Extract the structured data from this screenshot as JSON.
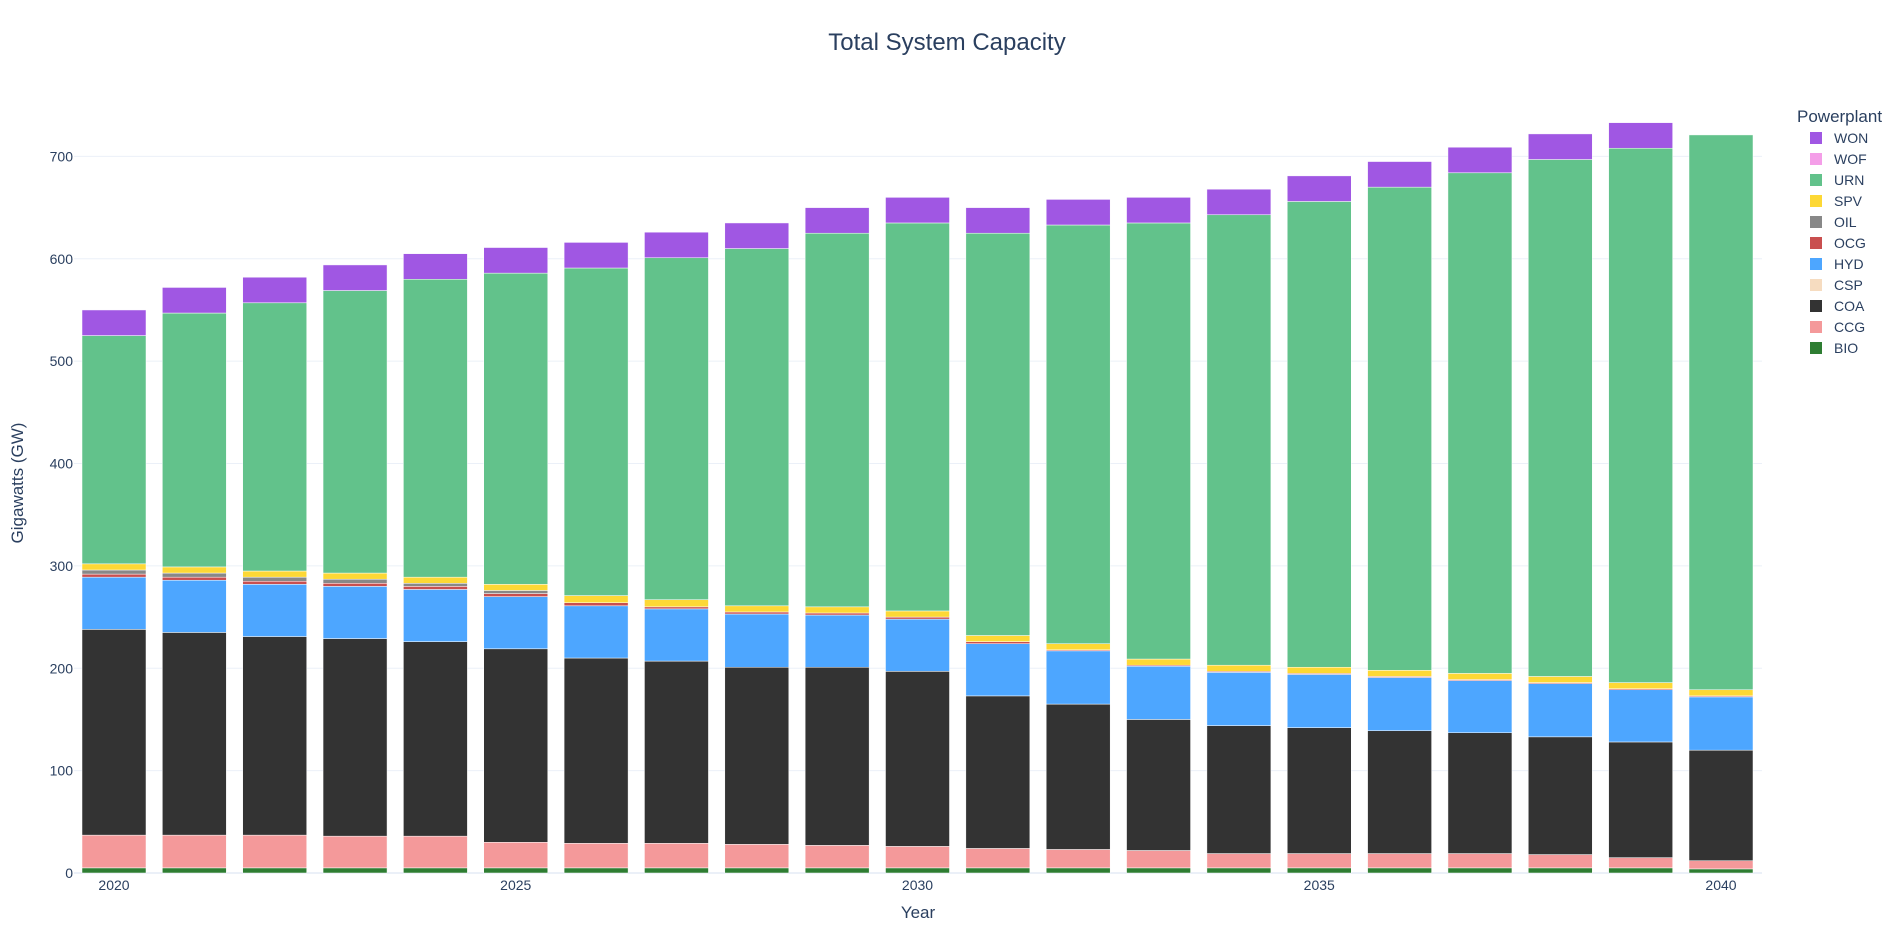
{
  "chart_data": {
    "type": "bar",
    "barmode": "stack",
    "title": "Total System Capacity",
    "xlabel": "Year",
    "ylabel": "Gigawatts (GW)",
    "ylim": [
      0,
      760
    ],
    "yticks": [
      0,
      100,
      200,
      300,
      400,
      500,
      600,
      700
    ],
    "xticks": [
      2020,
      2025,
      2030,
      2035,
      2040
    ],
    "legend_title": "Powerplant",
    "legend_position": "top-right",
    "categories": [
      2020,
      2021,
      2022,
      2023,
      2024,
      2025,
      2026,
      2027,
      2028,
      2029,
      2030,
      2031,
      2032,
      2033,
      2034,
      2035,
      2036,
      2037,
      2038,
      2039,
      2040
    ],
    "series": [
      {
        "name": "BIO",
        "color": "#2e7d32",
        "values": [
          5,
          5,
          5,
          5,
          5,
          5,
          5,
          5,
          5,
          5,
          5,
          5,
          5,
          5,
          5,
          5,
          5,
          5,
          5,
          5,
          4
        ]
      },
      {
        "name": "CCG",
        "color": "#f4999a",
        "values": [
          32,
          32,
          32,
          31,
          31,
          25,
          24,
          24,
          23,
          22,
          21,
          19,
          18,
          17,
          14,
          14,
          14,
          14,
          13,
          10,
          8
        ]
      },
      {
        "name": "COA",
        "color": "#333333",
        "values": [
          201,
          198,
          194,
          193,
          190,
          189,
          181,
          178,
          173,
          174,
          171,
          149,
          142,
          128,
          125,
          123,
          120,
          118,
          115,
          113,
          108
        ]
      },
      {
        "name": "CSP",
        "color": "#f6dcc0",
        "values": [
          0,
          0,
          0,
          0,
          0,
          0,
          0,
          0,
          0,
          0,
          0,
          0,
          0,
          0,
          0,
          0,
          0,
          0,
          0,
          0,
          0
        ]
      },
      {
        "name": "HYD",
        "color": "#4da6ff",
        "values": [
          51,
          51,
          51,
          51,
          51,
          51,
          51,
          51,
          52,
          51,
          51,
          51,
          52,
          52,
          52,
          52,
          52,
          51,
          52,
          51,
          52
        ]
      },
      {
        "name": "OCG",
        "color": "#c94f4f",
        "values": [
          3,
          3,
          3,
          3,
          3,
          3,
          3,
          2,
          2,
          2,
          2,
          2,
          1,
          1,
          1,
          1,
          1,
          1,
          1,
          1,
          1
        ]
      },
      {
        "name": "OIL",
        "color": "#888888",
        "values": [
          4,
          4,
          4,
          4,
          3,
          3,
          0,
          0,
          0,
          0,
          0,
          0,
          0,
          0,
          0,
          0,
          0,
          0,
          0,
          0,
          0
        ]
      },
      {
        "name": "SPV",
        "color": "#fdd835",
        "values": [
          6,
          6,
          6,
          6,
          6,
          6,
          7,
          7,
          6,
          6,
          6,
          6,
          6,
          6,
          6,
          6,
          6,
          6,
          6,
          6,
          6
        ]
      },
      {
        "name": "URN",
        "color": "#62c28b",
        "values": [
          223,
          248,
          262,
          276,
          291,
          304,
          320,
          334,
          349,
          365,
          379,
          393,
          409,
          426,
          440,
          455,
          472,
          489,
          505,
          522,
          542
        ]
      },
      {
        "name": "WOF",
        "color": "#f49ee8",
        "values": [
          0,
          0,
          0,
          0,
          0,
          0,
          0,
          0,
          0,
          0,
          0,
          0,
          0,
          0,
          0,
          0,
          0,
          0,
          0,
          0,
          0
        ]
      },
      {
        "name": "WON",
        "color": "#a057e3",
        "values": [
          25,
          25,
          25,
          25,
          25,
          25,
          25,
          25,
          25,
          25,
          25,
          25,
          25,
          25,
          25,
          25,
          25,
          25,
          25,
          25,
          0
        ]
      }
    ]
  }
}
